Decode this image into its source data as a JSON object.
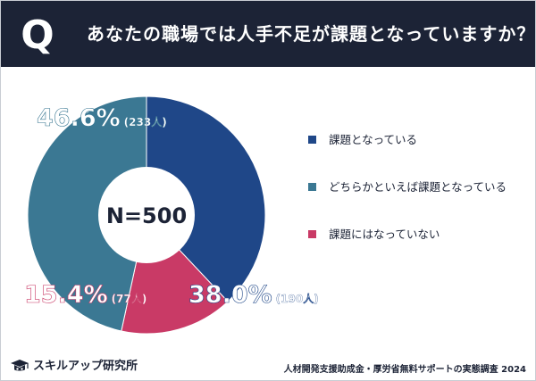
{
  "header": {
    "q_mark": "Q",
    "question": "あなたの職場では人手不足が課題となっていますか？"
  },
  "chart_data": {
    "type": "pie",
    "donut": true,
    "center_label": "N=500",
    "categories": [
      "課題となっている",
      "どちらかといえば課題となっている",
      "課題にはなっていない"
    ],
    "series": [
      {
        "values": [
          38.0,
          46.6,
          15.4
        ]
      }
    ],
    "slices": [
      {
        "label": "課題となっている",
        "percent": 38.0,
        "percent_text": "38.0%",
        "count_text": "(190人)",
        "color": "#1f4788"
      },
      {
        "label": "どちらかといえば課題となっている",
        "percent": 46.6,
        "percent_text": "46.6%",
        "count_text": "(233人)",
        "color": "#3b7893"
      },
      {
        "label": "課題にはなっていない",
        "percent": 15.4,
        "percent_text": "15.4%",
        "count_text": "(77人)",
        "color": "#c93a66"
      }
    ],
    "legend_position": "right"
  },
  "footer": {
    "brand": "スキルアップ研究所",
    "source": "人材開発支援助成金・厚労省無料サポートの実態調査 2024"
  },
  "colors": {
    "header_bg": "#1c2336",
    "text_dark": "#1c2336"
  }
}
